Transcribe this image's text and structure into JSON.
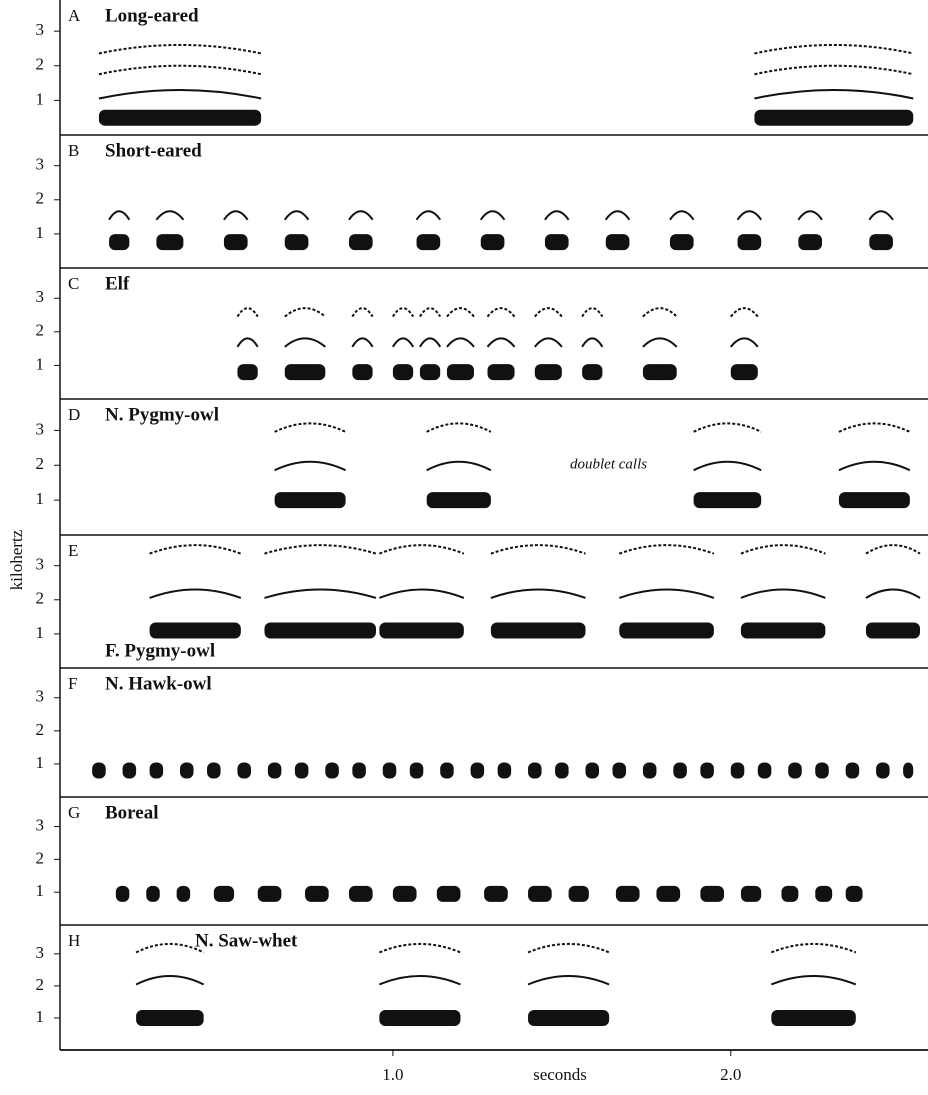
{
  "chart_data": {
    "type": "spectrogram",
    "y_label": "kilohertz",
    "x_label": "seconds",
    "xlim": [
      0,
      2.56
    ],
    "xticks": [
      {
        "value": 1.0,
        "label": "1.0"
      },
      {
        "value": 2.0,
        "label": "2.0"
      }
    ],
    "ylim": [
      0,
      3.9
    ],
    "yticks": [
      1,
      2,
      3
    ],
    "color": "#111111",
    "panels": [
      {
        "letter": "A",
        "name": "Long-eared",
        "harmonics": [
          0.5,
          1.2,
          1.9,
          2.5
        ],
        "calls": [
          [
            0.13,
            0.61
          ],
          [
            2.07,
            2.54
          ]
        ]
      },
      {
        "letter": "B",
        "name": "Short-eared",
        "harmonics": [
          0.76,
          1.56
        ],
        "calls": [
          [
            0.16,
            0.22
          ],
          [
            0.3,
            0.38
          ],
          [
            0.5,
            0.57
          ],
          [
            0.68,
            0.75
          ],
          [
            0.87,
            0.94
          ],
          [
            1.07,
            1.14
          ],
          [
            1.26,
            1.33
          ],
          [
            1.45,
            1.52
          ],
          [
            1.63,
            1.7
          ],
          [
            1.82,
            1.89
          ],
          [
            2.02,
            2.09
          ],
          [
            2.2,
            2.27
          ],
          [
            2.41,
            2.48
          ]
        ]
      },
      {
        "letter": "C",
        "name": "Elf",
        "harmonics": [
          0.8,
          1.7,
          2.6
        ],
        "calls": [
          [
            0.54,
            0.6
          ],
          [
            0.68,
            0.8
          ],
          [
            0.88,
            0.94
          ],
          [
            1.0,
            1.06
          ],
          [
            1.08,
            1.14
          ],
          [
            1.16,
            1.24
          ],
          [
            1.28,
            1.36
          ],
          [
            1.42,
            1.5
          ],
          [
            1.56,
            1.62
          ],
          [
            1.74,
            1.84
          ],
          [
            2.0,
            2.08
          ]
        ]
      },
      {
        "letter": "D",
        "name": "N. Pygmy-owl",
        "annotation": "doublet calls",
        "harmonics": [
          1.0,
          2.0,
          3.1
        ],
        "calls": [
          [
            0.65,
            0.86
          ],
          [
            1.1,
            1.29
          ],
          [
            1.89,
            2.09
          ],
          [
            2.32,
            2.53
          ]
        ]
      },
      {
        "letter": "E",
        "name": "",
        "annotation": "F. Pygmy-owl",
        "harmonics": [
          1.1,
          2.2,
          3.5
        ],
        "calls": [
          [
            0.28,
            0.55
          ],
          [
            0.62,
            0.95
          ],
          [
            0.96,
            1.21
          ],
          [
            1.29,
            1.57
          ],
          [
            1.67,
            1.95
          ],
          [
            2.03,
            2.28
          ],
          [
            2.4,
            2.56
          ]
        ]
      },
      {
        "letter": "F",
        "name": "N. Hawk-owl",
        "harmonics": [
          0.8
        ],
        "calls": [
          [
            0.11,
            0.15
          ],
          [
            0.2,
            0.24
          ],
          [
            0.28,
            0.32
          ],
          [
            0.37,
            0.41
          ],
          [
            0.45,
            0.49
          ],
          [
            0.54,
            0.58
          ],
          [
            0.63,
            0.67
          ],
          [
            0.71,
            0.75
          ],
          [
            0.8,
            0.84
          ],
          [
            0.88,
            0.92
          ],
          [
            0.97,
            1.01
          ],
          [
            1.05,
            1.09
          ],
          [
            1.14,
            1.18
          ],
          [
            1.23,
            1.27
          ],
          [
            1.31,
            1.35
          ],
          [
            1.4,
            1.44
          ],
          [
            1.48,
            1.52
          ],
          [
            1.57,
            1.61
          ],
          [
            1.65,
            1.69
          ],
          [
            1.74,
            1.78
          ],
          [
            1.83,
            1.87
          ],
          [
            1.91,
            1.95
          ],
          [
            2.0,
            2.04
          ],
          [
            2.08,
            2.12
          ],
          [
            2.17,
            2.21
          ],
          [
            2.25,
            2.29
          ],
          [
            2.34,
            2.38
          ],
          [
            2.43,
            2.47
          ],
          [
            2.51,
            2.54
          ]
        ]
      },
      {
        "letter": "G",
        "name": "Boreal",
        "harmonics": [
          0.95
        ],
        "calls": [
          [
            0.18,
            0.22
          ],
          [
            0.27,
            0.31
          ],
          [
            0.36,
            0.4
          ],
          [
            0.47,
            0.53
          ],
          [
            0.6,
            0.67
          ],
          [
            0.74,
            0.81
          ],
          [
            0.87,
            0.94
          ],
          [
            1.0,
            1.07
          ],
          [
            1.13,
            1.2
          ],
          [
            1.27,
            1.34
          ],
          [
            1.4,
            1.47
          ],
          [
            1.52,
            1.58
          ],
          [
            1.66,
            1.73
          ],
          [
            1.78,
            1.85
          ],
          [
            1.91,
            1.98
          ],
          [
            2.03,
            2.09
          ],
          [
            2.15,
            2.2
          ],
          [
            2.25,
            2.3
          ],
          [
            2.34,
            2.39
          ]
        ]
      },
      {
        "letter": "H",
        "name": "N. Saw-whet",
        "harmonics": [
          1.0,
          2.2,
          3.2
        ],
        "calls": [
          [
            0.24,
            0.44
          ],
          [
            0.96,
            1.2
          ],
          [
            1.4,
            1.64
          ],
          [
            2.12,
            2.37
          ]
        ]
      }
    ]
  }
}
